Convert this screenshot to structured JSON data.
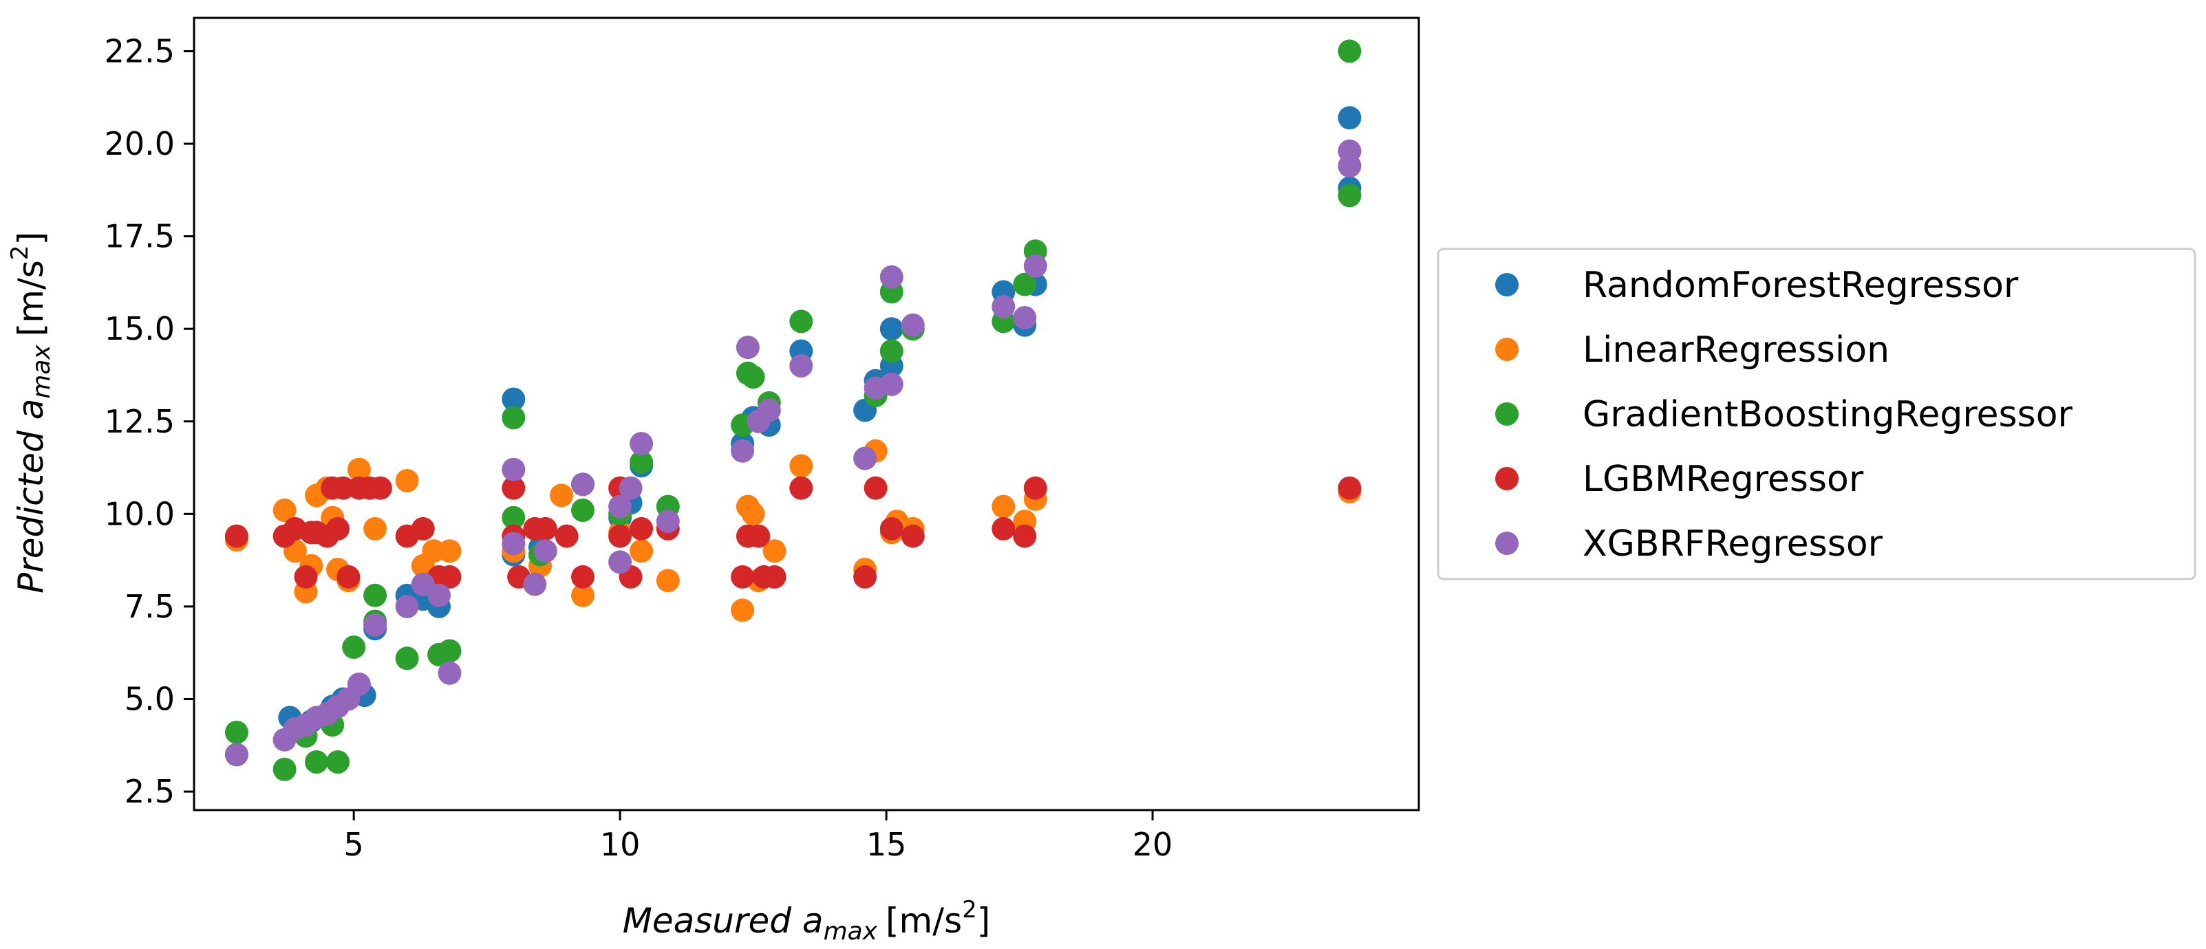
{
  "chart_data": {
    "type": "scatter",
    "xlabel": {
      "main": "Measured a",
      "sub": "max",
      "unit": "[m/s",
      "sup": "2",
      "close": "]"
    },
    "ylabel": {
      "main": "Predicted a",
      "sub": "max",
      "unit": "[m/s",
      "sup": "2",
      "close": "]"
    },
    "xlim": [
      2.0,
      25.0
    ],
    "ylim": [
      2.0,
      23.4
    ],
    "xticks": [
      5,
      10,
      15,
      20
    ],
    "xtick_labels": [
      "5",
      "10",
      "15",
      "20"
    ],
    "yticks": [
      2.5,
      5.0,
      7.5,
      10.0,
      12.5,
      15.0,
      17.5,
      20.0,
      22.5
    ],
    "ytick_labels": [
      "2.5",
      "5.0",
      "7.5",
      "10.0",
      "12.5",
      "15.0",
      "17.5",
      "20.0",
      "22.5"
    ],
    "grid": false,
    "legend_position": "right-outside",
    "series": [
      {
        "name": "RandomForestRegressor",
        "color": "#1f77b4",
        "points": [
          [
            2.8,
            3.5
          ],
          [
            3.8,
            4.5
          ],
          [
            4.2,
            4.4
          ],
          [
            4.6,
            4.8
          ],
          [
            4.8,
            5.0
          ],
          [
            5.2,
            5.1
          ],
          [
            5.4,
            6.9
          ],
          [
            6.0,
            7.8
          ],
          [
            6.3,
            7.7
          ],
          [
            6.6,
            7.5
          ],
          [
            8.0,
            13.1
          ],
          [
            8.0,
            8.9
          ],
          [
            8.5,
            9.1
          ],
          [
            9.3,
            10.8
          ],
          [
            10.0,
            9.9
          ],
          [
            10.2,
            10.3
          ],
          [
            10.4,
            11.3
          ],
          [
            12.3,
            11.9
          ],
          [
            12.5,
            12.6
          ],
          [
            12.8,
            12.4
          ],
          [
            13.4,
            14.4
          ],
          [
            14.6,
            12.8
          ],
          [
            14.8,
            13.6
          ],
          [
            15.1,
            15.0
          ],
          [
            15.1,
            14.0
          ],
          [
            17.2,
            16.0
          ],
          [
            17.6,
            15.1
          ],
          [
            17.8,
            16.2
          ],
          [
            23.7,
            20.7
          ],
          [
            23.7,
            18.8
          ]
        ]
      },
      {
        "name": "LinearRegression",
        "color": "#ff7f0e",
        "points": [
          [
            2.8,
            9.3
          ],
          [
            3.7,
            10.1
          ],
          [
            3.9,
            9.0
          ],
          [
            4.1,
            7.9
          ],
          [
            4.2,
            8.6
          ],
          [
            4.3,
            10.5
          ],
          [
            4.5,
            10.7
          ],
          [
            4.6,
            9.9
          ],
          [
            4.7,
            8.5
          ],
          [
            4.9,
            8.2
          ],
          [
            5.1,
            11.2
          ],
          [
            5.4,
            9.6
          ],
          [
            6.0,
            10.9
          ],
          [
            6.3,
            8.6
          ],
          [
            6.5,
            9.0
          ],
          [
            6.8,
            9.0
          ],
          [
            8.0,
            9.0
          ],
          [
            8.5,
            8.6
          ],
          [
            8.9,
            10.5
          ],
          [
            9.3,
            7.8
          ],
          [
            10.0,
            9.5
          ],
          [
            10.4,
            9.0
          ],
          [
            10.9,
            8.2
          ],
          [
            12.3,
            7.4
          ],
          [
            12.4,
            10.2
          ],
          [
            12.5,
            10.0
          ],
          [
            12.6,
            8.2
          ],
          [
            12.9,
            9.0
          ],
          [
            13.4,
            11.3
          ],
          [
            14.6,
            8.5
          ],
          [
            14.8,
            11.7
          ],
          [
            15.1,
            9.5
          ],
          [
            15.2,
            9.8
          ],
          [
            15.5,
            9.6
          ],
          [
            17.2,
            10.2
          ],
          [
            17.6,
            9.8
          ],
          [
            17.8,
            10.4
          ],
          [
            23.7,
            10.6
          ]
        ]
      },
      {
        "name": "GradientBoostingRegressor",
        "color": "#2ca02c",
        "points": [
          [
            2.8,
            4.1
          ],
          [
            3.7,
            3.1
          ],
          [
            4.1,
            4.0
          ],
          [
            4.3,
            3.3
          ],
          [
            4.6,
            4.3
          ],
          [
            4.7,
            3.3
          ],
          [
            5.0,
            6.4
          ],
          [
            5.4,
            7.8
          ],
          [
            5.4,
            7.1
          ],
          [
            6.0,
            6.1
          ],
          [
            6.6,
            6.2
          ],
          [
            6.8,
            6.3
          ],
          [
            8.0,
            12.6
          ],
          [
            8.0,
            9.9
          ],
          [
            8.5,
            8.9
          ],
          [
            9.3,
            10.1
          ],
          [
            10.0,
            10.0
          ],
          [
            10.4,
            11.4
          ],
          [
            10.9,
            10.2
          ],
          [
            12.3,
            12.4
          ],
          [
            12.4,
            13.8
          ],
          [
            12.5,
            13.7
          ],
          [
            12.8,
            13.0
          ],
          [
            13.4,
            15.2
          ],
          [
            14.8,
            13.2
          ],
          [
            15.1,
            16.0
          ],
          [
            15.1,
            14.4
          ],
          [
            15.5,
            15.0
          ],
          [
            17.2,
            15.2
          ],
          [
            17.6,
            16.2
          ],
          [
            17.8,
            17.1
          ],
          [
            23.7,
            22.5
          ],
          [
            23.7,
            18.6
          ]
        ]
      },
      {
        "name": "LGBMRegressor",
        "color": "#d62728",
        "points": [
          [
            2.8,
            9.4
          ],
          [
            3.7,
            9.4
          ],
          [
            3.9,
            9.6
          ],
          [
            4.1,
            8.3
          ],
          [
            4.2,
            9.5
          ],
          [
            4.3,
            9.5
          ],
          [
            4.5,
            9.4
          ],
          [
            4.6,
            10.7
          ],
          [
            4.7,
            9.6
          ],
          [
            4.8,
            10.7
          ],
          [
            4.9,
            8.3
          ],
          [
            5.1,
            10.7
          ],
          [
            5.3,
            10.7
          ],
          [
            5.5,
            10.7
          ],
          [
            6.0,
            9.4
          ],
          [
            6.3,
            9.6
          ],
          [
            6.6,
            8.3
          ],
          [
            6.8,
            8.3
          ],
          [
            8.0,
            10.7
          ],
          [
            8.0,
            9.4
          ],
          [
            8.1,
            8.3
          ],
          [
            8.4,
            9.6
          ],
          [
            8.6,
            9.6
          ],
          [
            9.0,
            9.4
          ],
          [
            9.3,
            8.3
          ],
          [
            10.0,
            10.7
          ],
          [
            10.0,
            9.4
          ],
          [
            10.2,
            8.3
          ],
          [
            10.4,
            9.6
          ],
          [
            10.9,
            9.6
          ],
          [
            12.3,
            8.3
          ],
          [
            12.4,
            9.4
          ],
          [
            12.6,
            9.4
          ],
          [
            12.7,
            8.3
          ],
          [
            12.9,
            8.3
          ],
          [
            13.4,
            10.7
          ],
          [
            14.6,
            8.3
          ],
          [
            14.8,
            10.7
          ],
          [
            15.1,
            9.6
          ],
          [
            15.5,
            9.4
          ],
          [
            17.2,
            9.6
          ],
          [
            17.6,
            9.4
          ],
          [
            17.8,
            10.7
          ],
          [
            23.7,
            10.7
          ]
        ]
      },
      {
        "name": "XGBRFRegressor",
        "color": "#9467bd",
        "points": [
          [
            2.8,
            3.5
          ],
          [
            3.7,
            3.9
          ],
          [
            3.9,
            4.2
          ],
          [
            4.1,
            4.3
          ],
          [
            4.3,
            4.5
          ],
          [
            4.5,
            4.6
          ],
          [
            4.7,
            4.8
          ],
          [
            4.9,
            5.0
          ],
          [
            5.1,
            5.4
          ],
          [
            5.4,
            7.0
          ],
          [
            6.0,
            7.5
          ],
          [
            6.3,
            8.1
          ],
          [
            6.6,
            7.8
          ],
          [
            6.8,
            5.7
          ],
          [
            8.0,
            11.2
          ],
          [
            8.0,
            9.2
          ],
          [
            8.4,
            8.1
          ],
          [
            8.6,
            9.0
          ],
          [
            9.3,
            10.8
          ],
          [
            10.0,
            8.7
          ],
          [
            10.0,
            10.2
          ],
          [
            10.2,
            10.7
          ],
          [
            10.4,
            11.9
          ],
          [
            10.9,
            9.8
          ],
          [
            12.3,
            11.7
          ],
          [
            12.4,
            14.5
          ],
          [
            12.6,
            12.5
          ],
          [
            12.8,
            12.8
          ],
          [
            13.4,
            14.0
          ],
          [
            14.6,
            11.5
          ],
          [
            14.8,
            13.4
          ],
          [
            15.1,
            13.5
          ],
          [
            15.1,
            16.4
          ],
          [
            15.5,
            15.1
          ],
          [
            17.2,
            15.6
          ],
          [
            17.6,
            15.3
          ],
          [
            17.8,
            16.7
          ],
          [
            23.7,
            19.8
          ],
          [
            23.7,
            19.4
          ]
        ]
      }
    ]
  }
}
